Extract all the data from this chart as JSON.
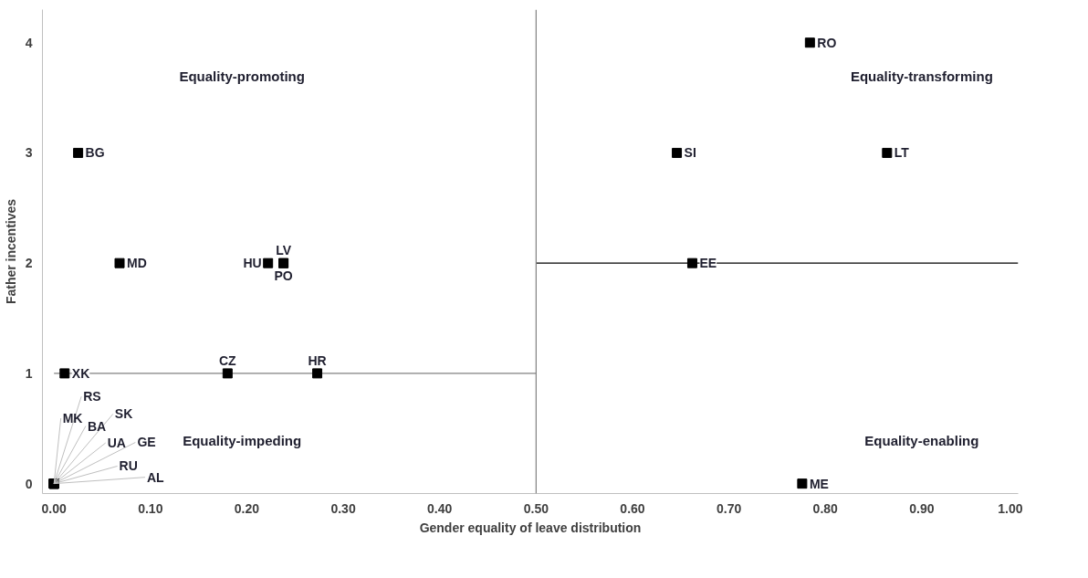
{
  "chart_data": {
    "type": "scatter",
    "xlabel": "Gender equality of leave distribution",
    "ylabel": "Father incentives",
    "xlim": [
      -0.012,
      1.0
    ],
    "ylim": [
      -0.09,
      4.3
    ],
    "xticks": [
      {
        "value": 0,
        "label": "0.00"
      },
      {
        "value": 0.1,
        "label": "0.10"
      },
      {
        "value": 0.2,
        "label": "0.20"
      },
      {
        "value": 0.3,
        "label": "0.30"
      },
      {
        "value": 0.4,
        "label": "0.40"
      },
      {
        "value": 0.5,
        "label": "0.50"
      },
      {
        "value": 0.6,
        "label": "0.60"
      },
      {
        "value": 0.7,
        "label": "0.70"
      },
      {
        "value": 0.8,
        "label": "0.80"
      },
      {
        "value": 0.9,
        "label": "0.90"
      },
      {
        "value": 1.0,
        "label": "1.00"
      }
    ],
    "yticks": [
      0,
      1,
      2,
      3,
      4
    ],
    "grid": false,
    "marker": "square",
    "series": [
      {
        "color": "#000000",
        "x": [
          0.784,
          0.646,
          0.864,
          0.662,
          0.025,
          0.068,
          0.222,
          0.238,
          0.238,
          0.011,
          0.18,
          0.273,
          0.776,
          0,
          0,
          0,
          0,
          0,
          0,
          0,
          0
        ],
        "values": [
          4,
          3,
          3,
          2,
          3,
          2,
          2,
          2,
          2,
          1,
          1,
          1,
          0,
          0,
          0,
          0,
          0,
          0,
          0,
          0,
          0
        ],
        "value_labels": [
          "RO",
          "SI",
          "LT",
          "EE",
          "BG",
          "MD",
          "HU",
          "LV",
          "PO",
          "XK",
          "CZ",
          "HR",
          "ME",
          "MK",
          "RS",
          "BA",
          "SK",
          "UA",
          "GE",
          "RU",
          "AL"
        ]
      },
      {
        "type": "line",
        "marker": "none",
        "color": "#808080",
        "x": [
          0,
          0.5
        ],
        "values": [
          1,
          1
        ]
      },
      {
        "type": "line",
        "marker": "none",
        "color": "#000000",
        "x": [
          0.5,
          1.0
        ],
        "values": [
          2,
          2
        ]
      }
    ],
    "ref_lines": [
      {
        "axis": "x",
        "value": 0.5,
        "color": "#808080"
      }
    ],
    "annotations": [
      "Equality-promoting",
      "Equality-transforming",
      "Equality-impeding",
      "Equality-enabling"
    ]
  }
}
